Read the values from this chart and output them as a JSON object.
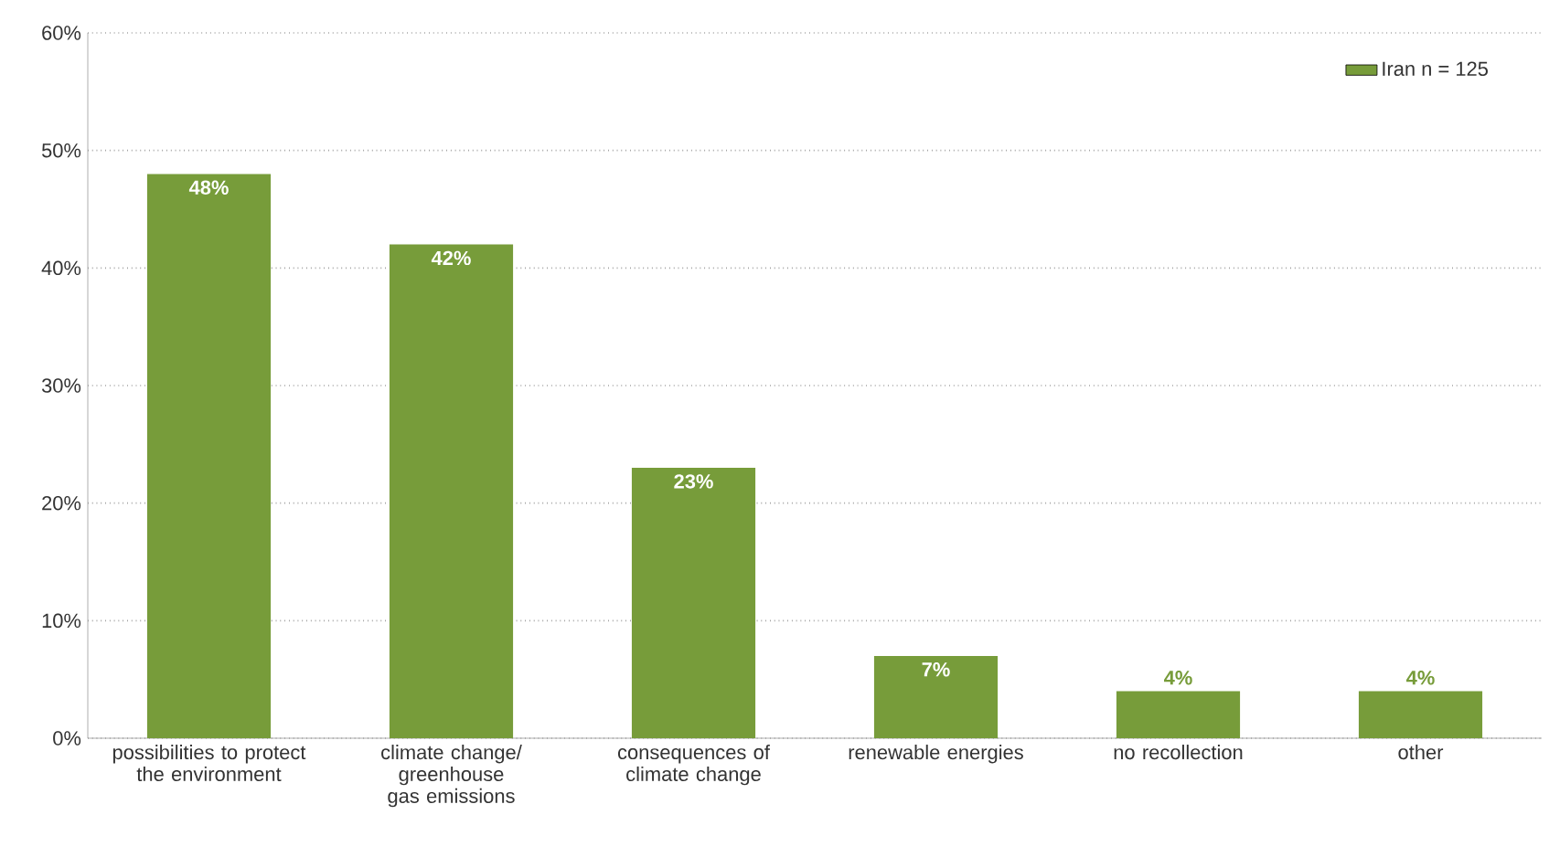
{
  "chart_data": {
    "type": "bar",
    "categories": [
      "possibilities to protect the environment",
      "climate change/ greenhouse gas emissions",
      "consequences of climate change",
      "renewable energies",
      "no recollection",
      "other"
    ],
    "series": [
      {
        "name": "Iran n = 125",
        "color": "#779c3a",
        "values": [
          48,
          42,
          23,
          7,
          4,
          4
        ]
      }
    ],
    "value_labels": [
      "48%",
      "42%",
      "23%",
      "7%",
      "4%",
      "4%"
    ],
    "ylim": [
      0,
      60
    ],
    "yticks": [
      {
        "value": 0,
        "label": "0%"
      },
      {
        "value": 10,
        "label": "10%"
      },
      {
        "value": 20,
        "label": "20%"
      },
      {
        "value": 30,
        "label": "30%"
      },
      {
        "value": 40,
        "label": "40%"
      },
      {
        "value": 50,
        "label": "50%"
      },
      {
        "value": 60,
        "label": "60%"
      }
    ],
    "grid": "y",
    "legend": "top right"
  }
}
